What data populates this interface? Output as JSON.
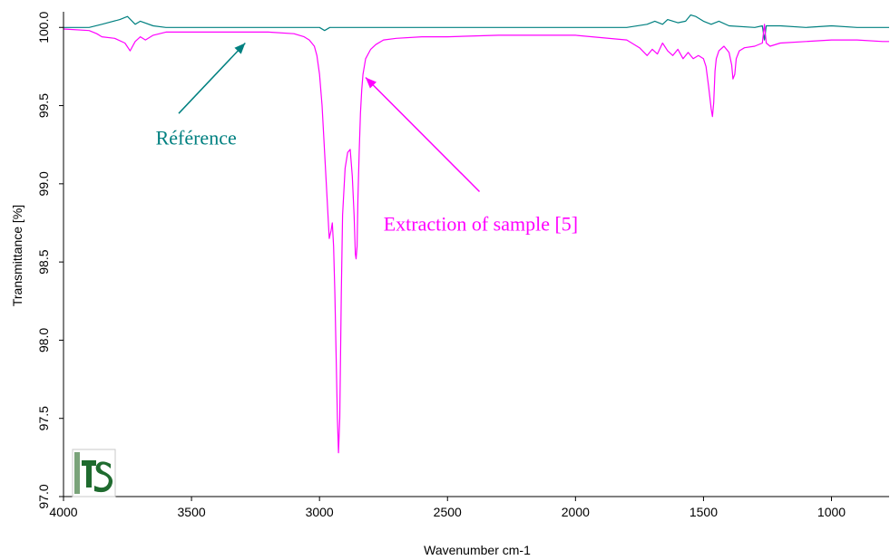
{
  "chart_data": {
    "type": "line",
    "title": "",
    "xlabel": "Wavenumber cm-1",
    "ylabel": "Transmittance [%]",
    "x_reversed": true,
    "xlim": [
      4000,
      775
    ],
    "ylim": [
      97.0,
      100.1
    ],
    "x_ticks": [
      4000,
      3500,
      3000,
      2500,
      2000,
      1500,
      1000
    ],
    "y_ticks": [
      97.0,
      97.5,
      98.0,
      98.5,
      99.0,
      99.5,
      100.0
    ],
    "x_tick_labels": [
      "4000",
      "3500",
      "3000",
      "2500",
      "2000",
      "1500",
      "1000"
    ],
    "y_tick_labels": [
      "97.0",
      "97.5",
      "98.0",
      "98.5",
      "99.0",
      "99.5",
      "100.0"
    ],
    "grid": false,
    "series": [
      {
        "name": "Référence",
        "color": "#008080",
        "x": [
          4000,
          3900,
          3850,
          3780,
          3750,
          3720,
          3700,
          3650,
          3600,
          3500,
          3400,
          3300,
          3200,
          3100,
          3050,
          3000,
          2980,
          2960,
          2950,
          2500,
          2000,
          1800,
          1720,
          1690,
          1660,
          1640,
          1600,
          1570,
          1550,
          1530,
          1500,
          1470,
          1440,
          1400,
          1300,
          1270,
          1262,
          1255,
          1240,
          1200,
          1100,
          1000,
          900,
          800,
          775
        ],
        "y": [
          100.0,
          100.0,
          100.02,
          100.05,
          100.07,
          100.02,
          100.04,
          100.01,
          100.0,
          100.0,
          100.0,
          100.0,
          100.0,
          100.0,
          100.0,
          100.0,
          99.98,
          100.0,
          100.0,
          100.0,
          100.0,
          100.0,
          100.02,
          100.04,
          100.02,
          100.05,
          100.03,
          100.04,
          100.08,
          100.07,
          100.04,
          100.02,
          100.04,
          100.01,
          100.0,
          100.01,
          99.92,
          100.01,
          100.01,
          100.01,
          100.0,
          100.01,
          100.0,
          100.0,
          100.0
        ]
      },
      {
        "name": "Extraction of sample [5]",
        "color": "#FF00FF",
        "x": [
          4000,
          3900,
          3870,
          3850,
          3800,
          3760,
          3740,
          3720,
          3700,
          3680,
          3650,
          3600,
          3500,
          3400,
          3300,
          3200,
          3100,
          3060,
          3040,
          3020,
          3010,
          3000,
          2990,
          2980,
          2970,
          2962,
          2955,
          2950,
          2945,
          2940,
          2935,
          2930,
          2926,
          2921,
          2915,
          2910,
          2900,
          2890,
          2880,
          2872,
          2865,
          2860,
          2857,
          2853,
          2850,
          2845,
          2840,
          2835,
          2830,
          2820,
          2800,
          2780,
          2750,
          2700,
          2600,
          2500,
          2300,
          2000,
          1800,
          1750,
          1720,
          1700,
          1680,
          1660,
          1640,
          1620,
          1600,
          1580,
          1560,
          1540,
          1520,
          1500,
          1490,
          1480,
          1470,
          1465,
          1460,
          1455,
          1450,
          1440,
          1420,
          1400,
          1390,
          1385,
          1378,
          1372,
          1360,
          1340,
          1300,
          1270,
          1262,
          1255,
          1240,
          1200,
          1100,
          1000,
          900,
          800,
          775
        ],
        "y": [
          99.99,
          99.98,
          99.96,
          99.94,
          99.93,
          99.9,
          99.85,
          99.91,
          99.94,
          99.92,
          99.95,
          99.97,
          99.97,
          99.97,
          99.97,
          99.97,
          99.96,
          99.94,
          99.92,
          99.88,
          99.82,
          99.7,
          99.5,
          99.2,
          98.9,
          98.65,
          98.7,
          98.75,
          98.6,
          98.3,
          97.9,
          97.5,
          97.28,
          97.5,
          98.3,
          98.8,
          99.1,
          99.2,
          99.22,
          99.05,
          98.8,
          98.55,
          98.52,
          98.6,
          98.9,
          99.2,
          99.45,
          99.6,
          99.7,
          99.8,
          99.86,
          99.89,
          99.92,
          99.93,
          99.94,
          99.94,
          99.95,
          99.95,
          99.92,
          99.87,
          99.82,
          99.86,
          99.83,
          99.9,
          99.85,
          99.82,
          99.86,
          99.8,
          99.84,
          99.8,
          99.82,
          99.8,
          99.75,
          99.62,
          99.48,
          99.43,
          99.52,
          99.72,
          99.8,
          99.85,
          99.88,
          99.84,
          99.76,
          99.67,
          99.7,
          99.8,
          99.85,
          99.87,
          99.88,
          99.9,
          100.02,
          99.9,
          99.88,
          99.9,
          99.91,
          99.92,
          99.92,
          99.91,
          99.91
        ]
      }
    ],
    "annotations": [
      {
        "text": "Référence",
        "color": "#008080",
        "data_x": 3290,
        "data_y": 99.9,
        "label_x": 3640,
        "label_y": 99.25,
        "label_anchor": "start",
        "arrow_from_x": 3550,
        "arrow_from_y": 99.45
      },
      {
        "text": "Extraction of sample [5]",
        "color": "#FF00FF",
        "data_x": 2820,
        "data_y": 99.68,
        "label_x": 2750,
        "label_y": 98.7,
        "label_anchor": "start",
        "arrow_from_x": 2375,
        "arrow_from_y": 98.95
      }
    ]
  }
}
